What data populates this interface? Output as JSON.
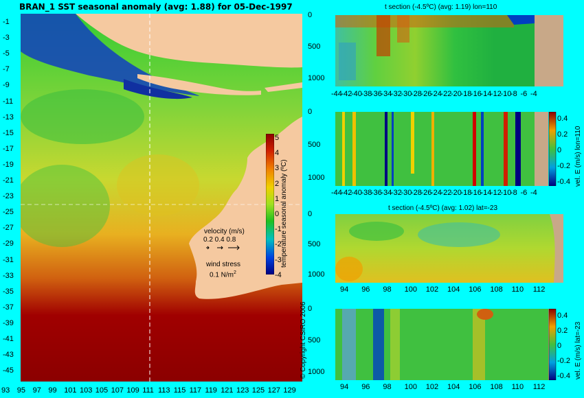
{
  "main_title": "BRAN_1  SST seasonal anomaly  (avg: 1.88) for 05-Dec-1997",
  "map": {
    "lat_ticks": [
      "-1",
      "-3",
      "-5",
      "-7",
      "-9",
      "-11",
      "-13",
      "-15",
      "-17",
      "-19",
      "-21",
      "-23",
      "-25",
      "-27",
      "-29",
      "-31",
      "-33",
      "-35",
      "-37",
      "-39",
      "-41",
      "-43",
      "-45"
    ],
    "lon_ticks": [
      "93",
      "95",
      "97",
      "99",
      "101",
      "103",
      "105",
      "107",
      "109",
      "111",
      "113",
      "115",
      "117",
      "119",
      "121",
      "123",
      "125",
      "127",
      "129"
    ],
    "legend": {
      "velocity_label": "velocity (m/s)",
      "velocity_scale": "0.2 0.4 0.8",
      "wind_label": "wind stress",
      "wind_value": "0.1 N/m",
      "wind_sup": "2"
    },
    "colorbar": {
      "ticks": [
        "5",
        "4",
        "3",
        "2",
        "1",
        "0",
        "-1",
        "-2",
        "-3",
        "-4"
      ],
      "label": "temperature seasonal anomaly (ºC)"
    },
    "copyright": "© Copyright CSIRO 2006"
  },
  "panels": [
    {
      "title": "t section (-4.5ºC) (avg: 1.19) lon=110",
      "y_ticks": [
        "0",
        "500",
        "1000"
      ],
      "x_ticks": [
        "-44",
        "-42",
        "-40",
        "-38",
        "-36",
        "-34",
        "-32",
        "-30",
        "-28",
        "-26",
        "-24",
        "-22",
        "-20",
        "-18",
        "-16",
        "-14",
        "-12",
        "-10",
        "-8",
        "-6",
        "-4"
      ]
    },
    {
      "title": "",
      "y_ticks": [
        "0",
        "500",
        "1000"
      ],
      "x_ticks": [
        "-44",
        "-42",
        "-40",
        "-38",
        "-36",
        "-34",
        "-32",
        "-30",
        "-28",
        "-26",
        "-24",
        "-22",
        "-20",
        "-18",
        "-16",
        "-14",
        "-12",
        "-10",
        "-8",
        "-6",
        "-4"
      ],
      "colorbar_ticks": [
        "0.4",
        "0.2",
        "0",
        "-0.2",
        "-0.4"
      ],
      "colorbar_label": "vel. E (m/s) lon=110"
    },
    {
      "title": "t section (-4.5ºC) (avg: 1.02) lat=-23",
      "y_ticks": [
        "0",
        "500",
        "1000"
      ],
      "x_ticks": [
        "94",
        "96",
        "98",
        "100",
        "102",
        "104",
        "106",
        "108",
        "110",
        "112"
      ]
    },
    {
      "title": "",
      "y_ticks": [
        "0",
        "500",
        "1000"
      ],
      "x_ticks": [
        "94",
        "96",
        "98",
        "100",
        "102",
        "104",
        "106",
        "108",
        "110",
        "112"
      ],
      "colorbar_ticks": [
        "0.4",
        "0.2",
        "0",
        "-0.2",
        "-0.4"
      ],
      "colorbar_label": "vel. E (m/s) lat=-23"
    }
  ]
}
